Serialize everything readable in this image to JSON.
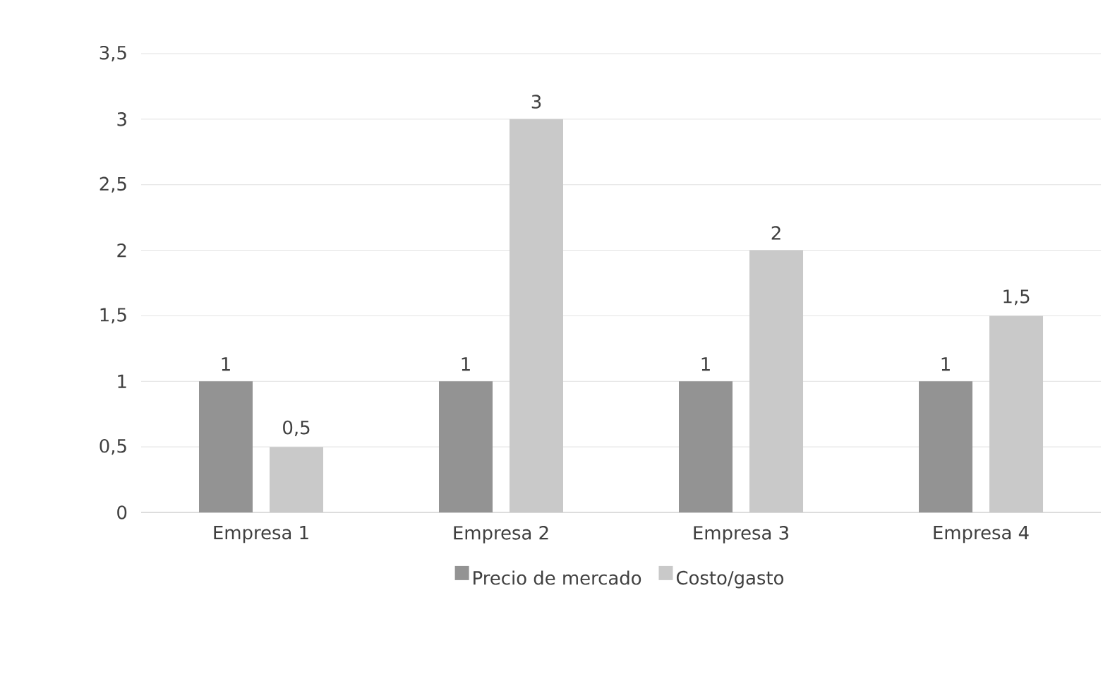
{
  "chart_data": {
    "type": "bar",
    "categories": [
      "Empresa 1",
      "Empresa 2",
      "Empresa 3",
      "Empresa 4"
    ],
    "series": [
      {
        "name": "Precio de mercado",
        "color": "#939393",
        "values": [
          1,
          1,
          1,
          1
        ],
        "value_labels": [
          "1",
          "1",
          "1",
          "1"
        ]
      },
      {
        "name": "Costo/gasto",
        "color": "#c9c9c9",
        "values": [
          0.5,
          3,
          2,
          1.5
        ],
        "value_labels": [
          "0,5",
          "3",
          "2",
          "1,5"
        ]
      }
    ],
    "ylim": [
      0,
      3.5
    ],
    "yticks": [
      0,
      {
        "value": 0.5,
        "label": "0,5"
      },
      1,
      {
        "value": 1.5,
        "label": "1,5"
      },
      2,
      {
        "value": 2.5,
        "label": "2,5"
      },
      3,
      {
        "value": 3.5,
        "label": "3,5"
      }
    ],
    "grid": "y",
    "legend": "bottom"
  }
}
